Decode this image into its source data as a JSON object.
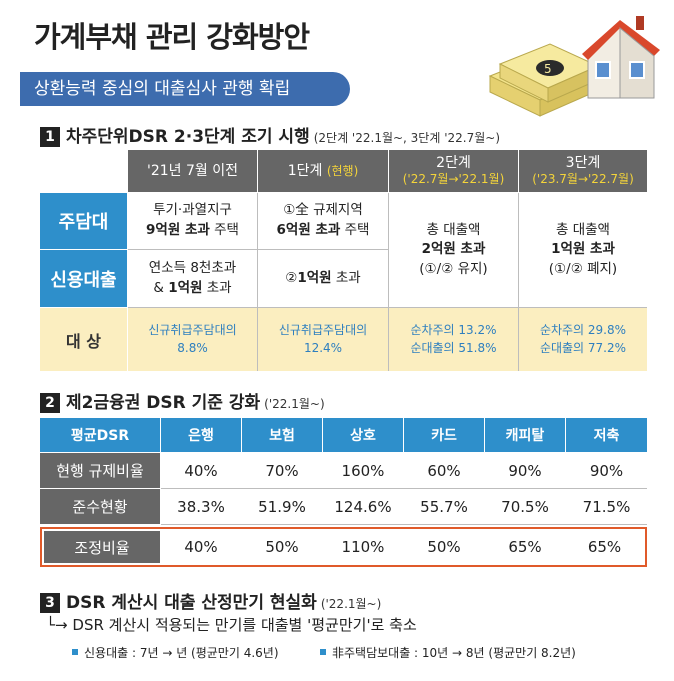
{
  "title": "가계부채 관리 강화방안",
  "banner": "상환능력 중심의 대출심사 관행 확립",
  "section1": {
    "num": "1",
    "heading": "차주단위DSR 2·3단계 조기 시행",
    "sub": "(2단계 '22.1월~, 3단계 '22.7월~)",
    "headers": [
      {
        "main": "'21년 7월 이전",
        "sub": ""
      },
      {
        "main": "1단계",
        "sub": "(현행)"
      },
      {
        "main": "2단계",
        "sub": "('22.7월→'22.1월)"
      },
      {
        "main": "3단계",
        "sub": "('23.7월→'22.7월)"
      }
    ],
    "rows": [
      {
        "label": "주담대"
      },
      {
        "label": "신용대출"
      }
    ],
    "cells": {
      "c0_r0_l1": "투기·과열지구",
      "c0_r0_l2a": "9억원 초과",
      "c0_r0_l2b": " 주택",
      "c0_r1_l1": "연소득 8천초과",
      "c0_r1_l2a": "& ",
      "c0_r1_l2b": "1억원",
      "c0_r1_l2c": " 초과",
      "c1_r0_l1": "①全 규제지역",
      "c1_r0_l2a": "6억원 초과",
      "c1_r0_l2b": " 주택",
      "c1_r1_a": "②",
      "c1_r1_b": "1억원",
      "c1_r1_c": " 초과",
      "c2_l1": "총 대출액",
      "c2_l2": "2억원 초과",
      "c2_l3": "(①/② 유지)",
      "c3_l1": "총 대출액",
      "c3_l2": "1억원 초과",
      "c3_l3": "(①/② 폐지)"
    },
    "target_label": "대  상",
    "targets": [
      [
        "신규취급주담대의",
        "8.8%"
      ],
      [
        "신규취급주담대의",
        "12.4%"
      ],
      [
        "순차주의 13.2%",
        "순대출의 51.8%"
      ],
      [
        "순차주의 29.8%",
        "순대출의 77.2%"
      ]
    ]
  },
  "section2": {
    "num": "2",
    "heading": "제2금융권 DSR 기준 강화",
    "sub": "('22.1월~)",
    "columns": [
      "평균DSR",
      "은행",
      "보험",
      "상호",
      "카드",
      "캐피탈",
      "저축"
    ],
    "rows": [
      {
        "label": "현행 규제비율",
        "values": [
          "40%",
          "70%",
          "160%",
          "60%",
          "90%",
          "90%"
        ]
      },
      {
        "label": "준수현황",
        "values": [
          "38.3%",
          "51.9%",
          "124.6%",
          "55.7%",
          "70.5%",
          "71.5%"
        ]
      },
      {
        "label": "조정비율",
        "values": [
          "40%",
          "50%",
          "110%",
          "50%",
          "65%",
          "65%"
        ]
      }
    ]
  },
  "section3": {
    "num": "3",
    "heading": "DSR 계산시 대출 산정만기 현실화",
    "sub": "('22.1월~)",
    "arrow": "└→",
    "line1": "DSR 계산시 적용되는 만기를 대출별 '평균만기'로 축소",
    "note1": "신용대출 : 7년 → 년 (평균만기 4.6년)",
    "note2": "非주택담보대출 : 10년 → 8년 (평균만기 8.2년)"
  },
  "colors": {
    "blue": "#2e8fcb",
    "navy": "#3d6cae",
    "gray": "#666666",
    "cream": "#fbeec0",
    "red": "#e05a2a",
    "yellow": "#f4d43a"
  },
  "illustration": "house-and-money-icon"
}
